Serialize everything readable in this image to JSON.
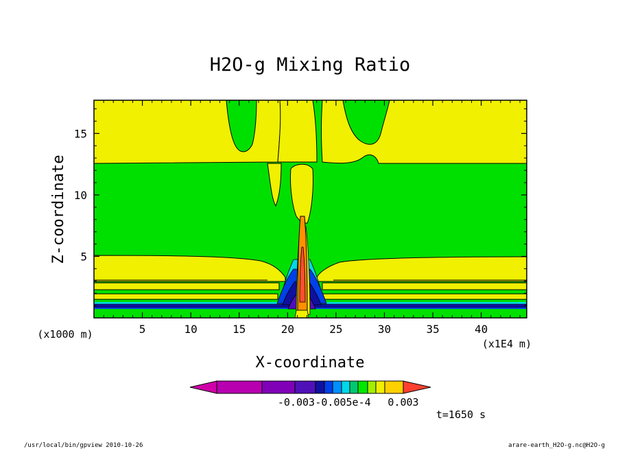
{
  "chart_data": {
    "type": "heatmap",
    "title": "H2O-g Mixing Ratio",
    "xlabel": "X-coordinate",
    "ylabel": "Z-coordinate",
    "x_unit_label": "(x1000 m)",
    "x_scale_label": "(x1E4 m)",
    "xlim": [
      0,
      44.7
    ],
    "ylim": [
      0,
      17.7
    ],
    "x_ticks": [
      "5",
      "10",
      "15",
      "20",
      "25",
      "30",
      "35",
      "40"
    ],
    "y_ticks": [
      "5",
      "10",
      "15"
    ],
    "x_tick_values": [
      5,
      10,
      15,
      20,
      25,
      30,
      35,
      40
    ],
    "y_tick_values": [
      5,
      10,
      15
    ],
    "colorbar_labels": [
      "-0.003",
      "-0.005e-4",
      "0.003"
    ],
    "colorbar_colors": [
      "#d000a8",
      "#b800b0",
      "#8000b8",
      "#5010b8",
      "#1010a0",
      "#0040e8",
      "#0090ff",
      "#00d8e8",
      "#00c870",
      "#00e800",
      "#a0f000",
      "#f0f000",
      "#ffd000",
      "#ffa800",
      "#ff8000",
      "#ff4030"
    ],
    "layers": [
      {
        "name": "background",
        "color": "#00e000"
      },
      {
        "name": "upper-band",
        "color": "#f0f000",
        "z": [
          12.7,
          17.7
        ]
      },
      {
        "name": "lower-band",
        "color": "#f0f000",
        "z": [
          3.3,
          5.0
        ]
      },
      {
        "name": "lower-band-2",
        "color": "#f0f000",
        "z": [
          2.6,
          3.0
        ]
      },
      {
        "name": "lower-band-3",
        "color": "#f0f000",
        "z": [
          1.9,
          2.3
        ]
      },
      {
        "name": "deep-blue-layer",
        "color": "#1010a0",
        "z": [
          0.8,
          1.3
        ]
      },
      {
        "name": "plume-core",
        "color": "#ff9000",
        "x": [
          21.0,
          22.0
        ],
        "z": [
          0.3,
          8.5
        ]
      }
    ],
    "time_label": "t=1650 s"
  },
  "footer": {
    "left": "/usr/local/bin/gpview  2010-10-26",
    "right": "arare-earth_H2O-g.nc@H2O-g"
  },
  "colors": {
    "green": "#00e000",
    "yellow": "#f0f000",
    "blue": "#1010a0"
  }
}
